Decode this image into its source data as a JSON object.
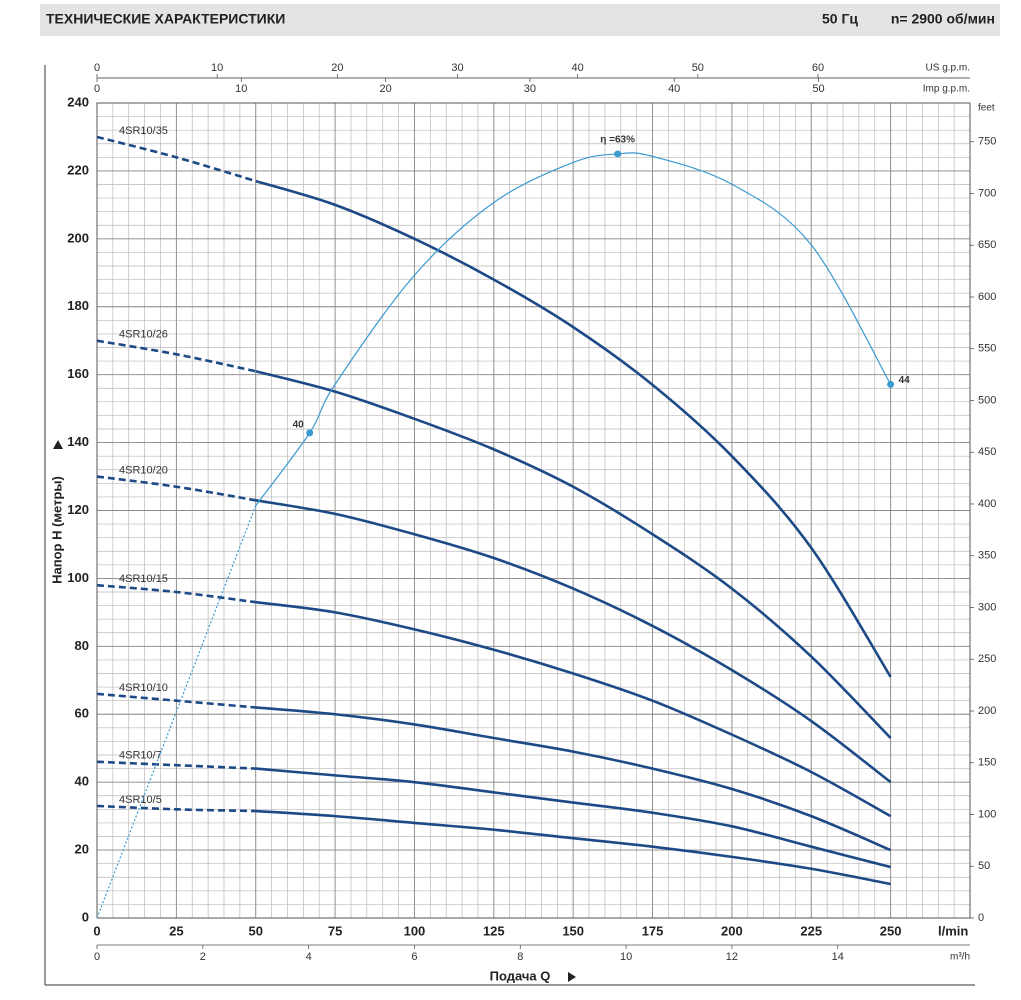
{
  "chart_data": {
    "type": "line",
    "title": "ТЕХНИЧЕСКИЕ ХАРАКТЕРИСТИКИ",
    "frequency": "50 Гц",
    "speed": "n= 2900  об/мин",
    "x_label": "Подача Q",
    "x_unit": "l/min",
    "y_label": "Напор H (метры)",
    "xlim": [
      0,
      275
    ],
    "xticks": [
      0,
      25,
      50,
      75,
      100,
      125,
      150,
      175,
      200,
      225,
      250
    ],
    "ylim": [
      0,
      240
    ],
    "yticks": [
      0,
      20,
      40,
      60,
      80,
      100,
      120,
      140,
      160,
      180,
      200,
      220,
      240
    ],
    "grid": true,
    "grid_subdivisions": 5,
    "dashed_below_x": 50,
    "x": [
      0,
      25,
      50,
      75,
      100,
      125,
      150,
      175,
      200,
      225,
      250
    ],
    "series": [
      {
        "name": "4SR10/35",
        "color": "#1d4a86",
        "values": [
          230,
          224,
          217,
          210,
          200,
          188,
          174,
          157,
          136,
          109,
          71
        ]
      },
      {
        "name": "4SR10/26",
        "color": "#1d4a86",
        "values": [
          170,
          166,
          161,
          155,
          147,
          138,
          127,
          113,
          97,
          77,
          53
        ]
      },
      {
        "name": "4SR10/20",
        "color": "#1d4a86",
        "values": [
          130,
          127,
          123,
          119,
          113,
          106,
          97,
          86,
          73,
          58,
          40
        ]
      },
      {
        "name": "4SR10/15",
        "color": "#1d4a86",
        "values": [
          98,
          96,
          93,
          90,
          85,
          79,
          72,
          64,
          54,
          43,
          30
        ]
      },
      {
        "name": "4SR10/10",
        "color": "#1d4a86",
        "values": [
          66,
          64,
          62,
          60,
          57,
          53,
          49,
          44,
          38,
          30,
          20
        ]
      },
      {
        "name": "4SR10/7",
        "color": "#1d4a86",
        "values": [
          46,
          45,
          44,
          42,
          40,
          37,
          34,
          31,
          27,
          21,
          15
        ]
      },
      {
        "name": "4SR10/5",
        "color": "#1d4a86",
        "values": [
          33,
          32,
          31.5,
          30,
          28,
          26,
          23.5,
          21,
          18,
          14.5,
          10
        ]
      }
    ],
    "efficiency": {
      "color": "#3a9ad2",
      "axis": "y2",
      "x": [
        0,
        25,
        50,
        67,
        75,
        100,
        125,
        150,
        164,
        175,
        200,
        225,
        250
      ],
      "values": [
        0,
        17,
        34,
        40,
        44,
        53,
        59,
        62.3,
        63,
        62.8,
        60.5,
        55.5,
        44
      ],
      "value_labels": [
        null,
        null,
        null,
        "40",
        null,
        null,
        null,
        null,
        "η =63%",
        null,
        null,
        null,
        "44"
      ]
    },
    "y2lim": [
      0,
      67.2
    ],
    "secondary_axes": {
      "us_gpm": {
        "unit": "US g.p.m.",
        "lim": [
          0,
          72.65
        ],
        "ticks": [
          0,
          10,
          20,
          30,
          40,
          50,
          60
        ]
      },
      "imp_gpm": {
        "unit": "Imp g.p.m.",
        "lim": [
          0,
          60.5
        ],
        "ticks": [
          0,
          10,
          20,
          30,
          40,
          50
        ]
      },
      "m3h": {
        "unit": "m³/h",
        "lim": [
          0,
          16.5
        ],
        "ticks": [
          0,
          2,
          4,
          6,
          8,
          10,
          12,
          14
        ]
      },
      "feet": {
        "unit": "feet",
        "lim": [
          0,
          787.4
        ],
        "ticks": [
          0,
          50,
          100,
          150,
          200,
          250,
          300,
          350,
          400,
          450,
          500,
          550,
          600,
          650,
          700,
          750
        ]
      }
    }
  }
}
